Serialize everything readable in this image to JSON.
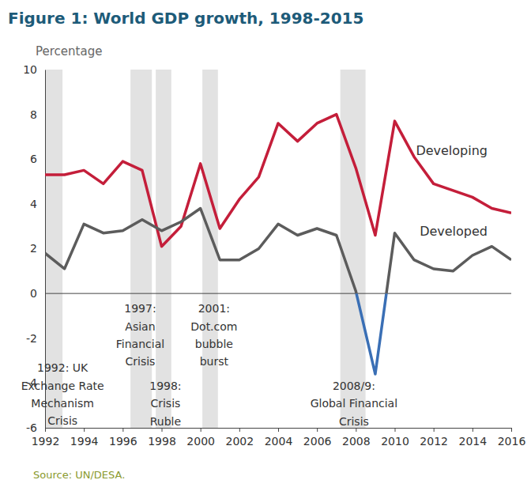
{
  "chart_data": {
    "type": "line",
    "title": "Figure 1: World GDP growth, 1998-2015",
    "y_label": "Percentage",
    "source": "Source: UN/DESA.",
    "x": [
      1992,
      1993,
      1994,
      1995,
      1996,
      1997,
      1998,
      1999,
      2000,
      2001,
      2002,
      2003,
      2004,
      2005,
      2006,
      2007,
      2008,
      2009,
      2010,
      2011,
      2012,
      2013,
      2014,
      2015,
      2016
    ],
    "series": [
      {
        "name": "Developing",
        "color": "#c41e3a",
        "values": [
          5.3,
          5.3,
          5.5,
          4.9,
          5.9,
          5.5,
          2.1,
          3.0,
          5.8,
          2.9,
          4.2,
          5.2,
          7.6,
          6.8,
          7.6,
          8.0,
          5.6,
          2.6,
          7.7,
          6.1,
          4.9,
          4.6,
          4.3,
          3.8,
          3.6
        ]
      },
      {
        "name": "Developed",
        "color": "#5c5c5c",
        "values": [
          1.8,
          1.1,
          3.1,
          2.7,
          2.8,
          3.3,
          2.8,
          3.2,
          3.8,
          1.5,
          1.5,
          2.0,
          3.1,
          2.6,
          2.9,
          2.6,
          0.1,
          -3.6,
          2.7,
          1.5,
          1.1,
          1.0,
          1.7,
          2.1,
          1.5
        ]
      }
    ],
    "xlim": [
      1992,
      2016
    ],
    "xticks": [
      1992,
      1994,
      1996,
      1998,
      2000,
      2002,
      2004,
      2006,
      2008,
      2010,
      2012,
      2014,
      2016
    ],
    "ylim": [
      -6,
      10
    ],
    "yticks": [
      -6,
      -4,
      -2,
      0,
      2,
      4,
      6,
      8,
      10
    ],
    "bands": [
      {
        "from": 1992.0,
        "to": 1992.9
      },
      {
        "from": 1996.4,
        "to": 1997.5
      },
      {
        "from": 1997.7,
        "to": 1998.5
      },
      {
        "from": 2000.1,
        "to": 2000.9
      },
      {
        "from": 2007.2,
        "to": 2008.5
      }
    ],
    "annotations": [
      {
        "lines": [
          "1997:",
          "Asian",
          "Financial",
          "Crisis"
        ],
        "x": 1996.9,
        "y": -0.85
      },
      {
        "lines": [
          "2001:",
          "Dot.com",
          "bubble",
          "burst"
        ],
        "x": 2000.7,
        "y": -0.85
      },
      {
        "lines": [
          "1992: UK",
          "Exchange Rate",
          "Mechanism",
          "Crisis"
        ],
        "x": 1992.9,
        "y": -3.5
      },
      {
        "lines": [
          "1998:",
          "Crisis",
          "Ruble"
        ],
        "x": 1998.2,
        "y": -4.3
      },
      {
        "lines": [
          "2008/9:",
          "Global Financial",
          "Crisis"
        ],
        "x": 2007.9,
        "y": -4.3
      }
    ]
  }
}
